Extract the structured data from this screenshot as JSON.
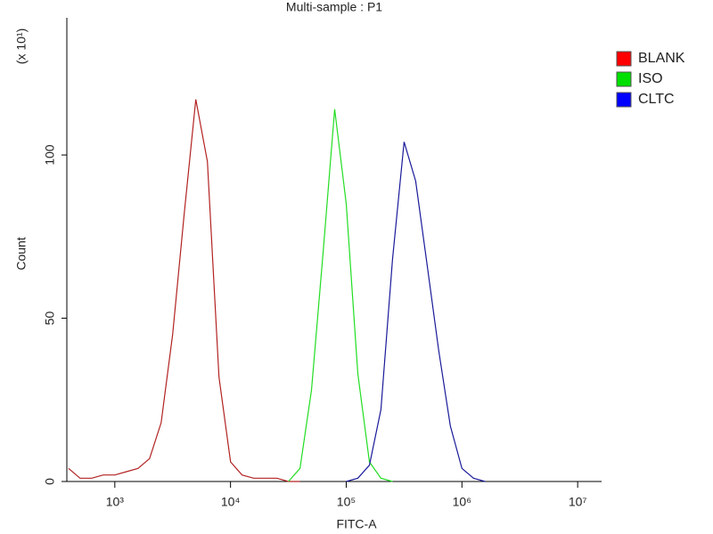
{
  "chart_data": {
    "type": "line",
    "title": "Multi-sample : P1",
    "x_label": "FITC-A",
    "y_label": "Count",
    "y_unit_label": "(x 10¹)",
    "log_x": true,
    "legend": "right",
    "x": [
      398,
      501,
      631,
      794,
      1000,
      1259,
      1585,
      1995,
      2512,
      3162,
      3981,
      5012,
      6310,
      7943,
      10000,
      12589,
      15849,
      19953,
      25119,
      31623,
      39811,
      50119,
      63096,
      79433,
      100000,
      125893,
      158489,
      199526,
      251189,
      316228,
      398107,
      501187,
      630957,
      794328,
      1000000,
      1258925,
      1584893
    ],
    "series": [
      {
        "name": "BLANK",
        "color": "#b22222",
        "values": [
          4,
          1,
          1,
          2,
          2,
          3,
          4,
          7,
          18,
          45,
          82,
          117,
          98,
          32,
          6,
          2,
          1,
          1,
          1,
          0,
          0,
          null,
          null,
          null,
          null,
          null,
          null,
          null,
          null,
          null,
          null,
          null,
          null,
          null,
          null,
          null,
          null
        ]
      },
      {
        "name": "ISO",
        "color": "#22dd22",
        "values": [
          null,
          null,
          null,
          null,
          null,
          null,
          null,
          null,
          null,
          null,
          null,
          null,
          null,
          null,
          null,
          null,
          null,
          null,
          null,
          0,
          4,
          28,
          70,
          114,
          85,
          33,
          6,
          1,
          0,
          null,
          null,
          null,
          null,
          null,
          null,
          null,
          null
        ]
      },
      {
        "name": "CLTC",
        "color": "#1a1a9a",
        "values": [
          null,
          null,
          null,
          null,
          null,
          null,
          null,
          null,
          null,
          null,
          null,
          null,
          null,
          null,
          null,
          null,
          null,
          null,
          null,
          null,
          null,
          null,
          null,
          null,
          0,
          1,
          5,
          22,
          68,
          104,
          92,
          66,
          40,
          17,
          4,
          1,
          0
        ]
      }
    ],
    "legend_colors": [
      "#ff0000",
      "#00e000",
      "#0000ff"
    ],
    "xlim": [
      385,
      16100000
    ],
    "xticks": [
      {
        "value": 1000,
        "label": "10³"
      },
      {
        "value": 10000,
        "label": "10⁴"
      },
      {
        "value": 100000,
        "label": "10⁵"
      },
      {
        "value": 1000000,
        "label": "10⁶"
      },
      {
        "value": 10000000,
        "label": "10⁷"
      }
    ],
    "ylim": [
      0,
      142
    ],
    "yticks": [
      0,
      50,
      100
    ]
  }
}
